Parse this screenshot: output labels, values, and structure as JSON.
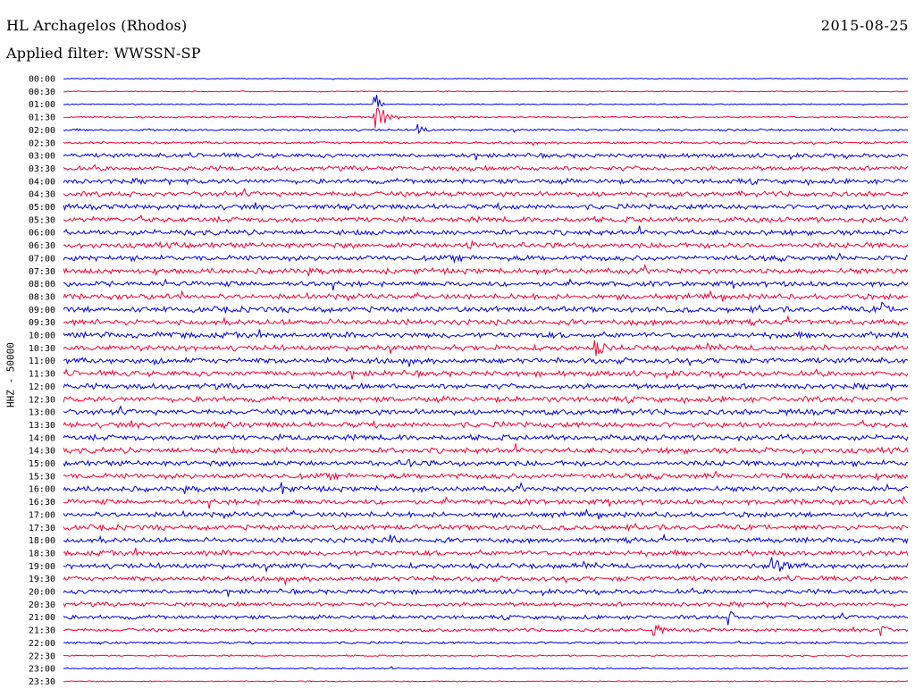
{
  "header": {
    "station": "HL Archagelos (Rhodos)",
    "filter": "Applied filter: WWSSN-SP",
    "date": "2015-08-25"
  },
  "chart_data": {
    "type": "line",
    "title": "HL Archagelos (Rhodos)",
    "subtitle": "Applied filter: WWSSN-SP",
    "ylabel": "HHZ - 50000",
    "xlabel": "",
    "rows": [
      "00:00",
      "00:30",
      "01:00",
      "01:30",
      "02:00",
      "02:30",
      "03:00",
      "03:30",
      "04:00",
      "04:30",
      "05:00",
      "05:30",
      "06:00",
      "06:30",
      "07:00",
      "07:30",
      "08:00",
      "08:30",
      "09:00",
      "09:30",
      "10:00",
      "10:30",
      "11:00",
      "11:30",
      "12:00",
      "12:30",
      "13:00",
      "13:30",
      "14:00",
      "14:30",
      "15:00",
      "15:30",
      "16:00",
      "16:30",
      "17:00",
      "17:30",
      "18:00",
      "18:30",
      "19:00",
      "19:30",
      "20:00",
      "20:30",
      "21:00",
      "21:30",
      "22:00",
      "22:30",
      "23:00",
      "23:30"
    ],
    "colors": [
      "#0000e6",
      "#ff0033"
    ],
    "noise_level": [
      0.5,
      0.6,
      0.7,
      1.1,
      1.4,
      1.6,
      2.8,
      3.0,
      3.2,
      3.3,
      3.4,
      3.5,
      3.4,
      3.5,
      3.4,
      3.5,
      3.3,
      3.5,
      3.6,
      3.7,
      3.7,
      3.6,
      3.6,
      3.6,
      3.5,
      3.6,
      3.6,
      3.6,
      3.6,
      3.6,
      3.5,
      3.5,
      3.4,
      3.4,
      3.3,
      3.4,
      3.3,
      3.4,
      3.4,
      3.2,
      3.0,
      2.8,
      2.6,
      2.2,
      1.5,
      1.0,
      0.9,
      0.7
    ],
    "events": [
      {
        "row": 3,
        "x": 0.37,
        "amp": 16,
        "len": 0.03
      },
      {
        "row": 2,
        "x": 0.37,
        "amp": 14,
        "len": 0.01
      },
      {
        "row": 4,
        "x": 0.42,
        "amp": 9,
        "len": 0.015
      },
      {
        "row": 21,
        "x": 0.63,
        "amp": 10,
        "len": 0.03
      },
      {
        "row": 38,
        "x": 0.84,
        "amp": 11,
        "len": 0.04
      },
      {
        "row": 43,
        "x": 0.7,
        "amp": 10,
        "len": 0.02
      },
      {
        "row": 42,
        "x": 0.79,
        "amp": 9,
        "len": 0.015
      },
      {
        "row": 43,
        "x": 0.97,
        "amp": 9,
        "len": 0.015
      },
      {
        "row": 13,
        "x": 0.48,
        "amp": 9,
        "len": 0.015
      },
      {
        "row": 22,
        "x": 0.11,
        "amp": 9,
        "len": 0.015
      },
      {
        "row": 18,
        "x": 0.97,
        "amp": 9,
        "len": 0.02
      },
      {
        "row": 30,
        "x": 0.41,
        "amp": 9,
        "len": 0.015
      },
      {
        "row": 32,
        "x": 0.26,
        "amp": 9,
        "len": 0.015
      },
      {
        "row": 36,
        "x": 0.39,
        "amp": 9,
        "len": 0.015
      }
    ]
  }
}
